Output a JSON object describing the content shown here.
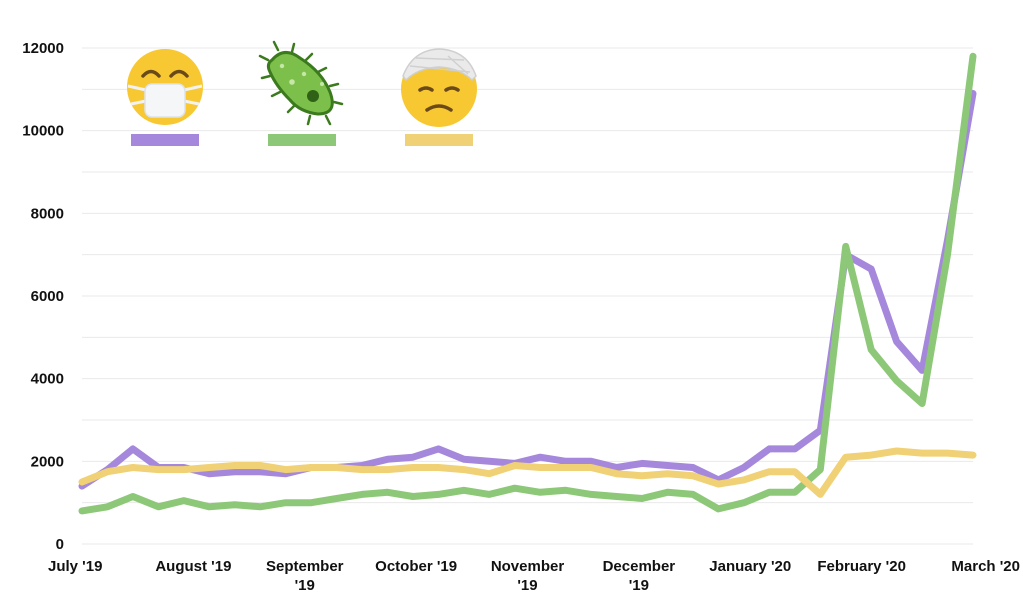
{
  "chart_data": {
    "type": "line",
    "title": "",
    "xlabel": "",
    "ylabel": "",
    "ylim": [
      0,
      12000
    ],
    "yticks": [
      0,
      2000,
      4000,
      6000,
      8000,
      10000,
      12000
    ],
    "x_tick_labels": [
      [
        "July '19"
      ],
      [
        "August '19"
      ],
      [
        "September",
        "'19"
      ],
      [
        "October '19"
      ],
      [
        "November",
        "'19"
      ],
      [
        "December",
        "'19"
      ],
      [
        "January '20"
      ],
      [
        "February '20"
      ],
      [
        "March '20"
      ]
    ],
    "grid": true,
    "legend": "top-left",
    "x_points": 39,
    "series": [
      {
        "icon": "face-with-medical-mask-icon",
        "color": "#a588dc",
        "values": [
          1400,
          1800,
          2300,
          1850,
          1850,
          1700,
          1750,
          1750,
          1700,
          1850,
          1850,
          1900,
          2050,
          2100,
          2300,
          2050,
          2000,
          1950,
          2100,
          2000,
          2000,
          1850,
          1950,
          1900,
          1850,
          1550,
          1850,
          2300,
          2300,
          2750,
          7000,
          6650,
          4900,
          4200,
          7350,
          10900
        ]
      },
      {
        "icon": "microbe-icon",
        "color": "#8dc878",
        "values": [
          800,
          900,
          1150,
          900,
          1050,
          900,
          950,
          900,
          1000,
          1000,
          1100,
          1200,
          1250,
          1150,
          1200,
          1300,
          1200,
          1350,
          1250,
          1300,
          1200,
          1150,
          1100,
          1250,
          1200,
          850,
          1000,
          1250,
          1250,
          1800,
          7200,
          4700,
          3950,
          3400,
          7000,
          11800
        ]
      },
      {
        "icon": "face-with-head-bandage-icon",
        "color": "#f0d175",
        "values": [
          1500,
          1750,
          1850,
          1800,
          1800,
          1850,
          1900,
          1900,
          1800,
          1850,
          1850,
          1800,
          1800,
          1850,
          1850,
          1800,
          1700,
          1900,
          1850,
          1850,
          1850,
          1700,
          1650,
          1700,
          1650,
          1450,
          1550,
          1750,
          1750,
          1200,
          2100,
          2150,
          2250,
          2200,
          2200,
          2150
        ]
      }
    ]
  }
}
